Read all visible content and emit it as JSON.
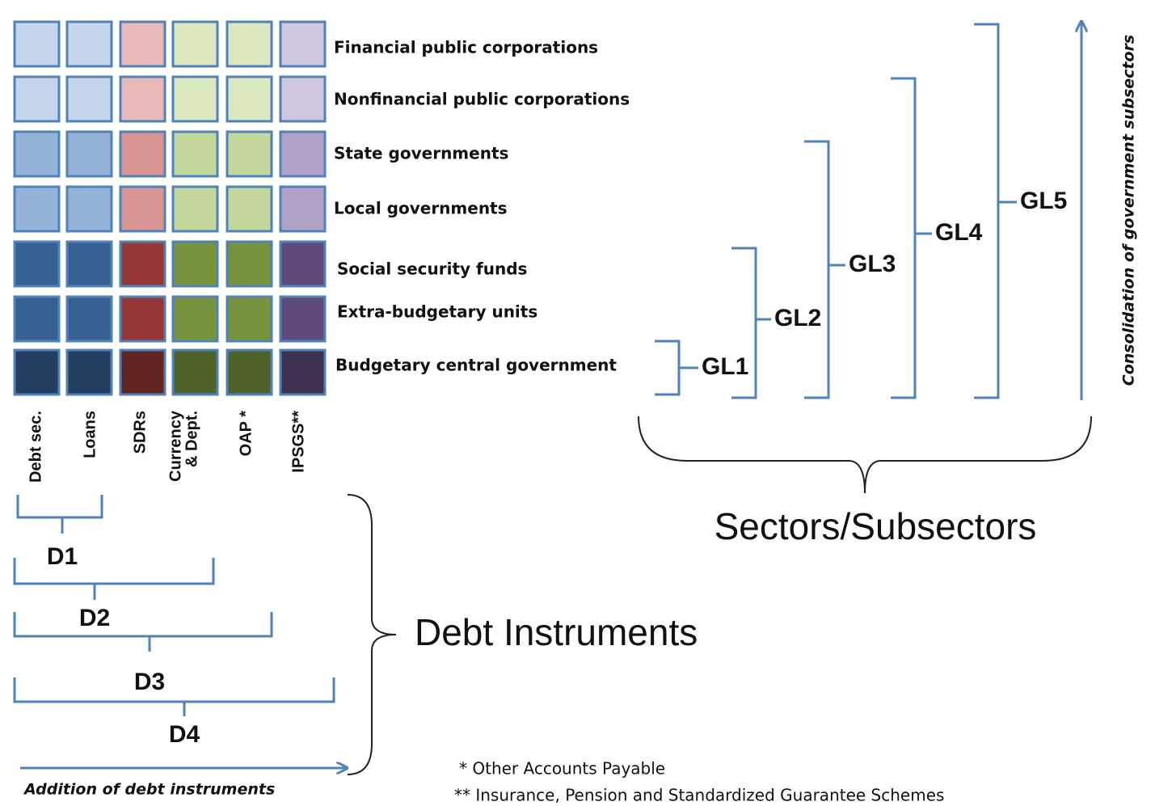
{
  "sectors": [
    "Financial public corporations",
    "Nonfinancial public corporations",
    "State governments",
    "Local governments",
    "Social security funds",
    "Extra-budgetary units",
    "Budgetary central government"
  ],
  "instruments": [
    {
      "lines": [
        "Debt sec."
      ]
    },
    {
      "lines": [
        "Loans"
      ]
    },
    {
      "lines": [
        "SDRs"
      ]
    },
    {
      "lines": [
        "Currency",
        "& Dept."
      ]
    },
    {
      "lines": [
        "OAP *"
      ]
    },
    {
      "lines": [
        "IPSGS**"
      ]
    }
  ],
  "government_levels": [
    "GL1",
    "GL2",
    "GL3",
    "GL4",
    "GL5"
  ],
  "debt_levels": [
    "D1",
    "D2",
    "D3",
    "D4"
  ],
  "sectors_label": "Sectors/Subsectors",
  "instruments_label": "Debt Instruments",
  "consolidation_label": "Consolidation of government subsectors",
  "addition_label": "Addition of debt instruments",
  "footnotes": [
    "* Other Accounts Payable",
    "** Insurance, Pension and Standardized Guarantee Schemes"
  ]
}
